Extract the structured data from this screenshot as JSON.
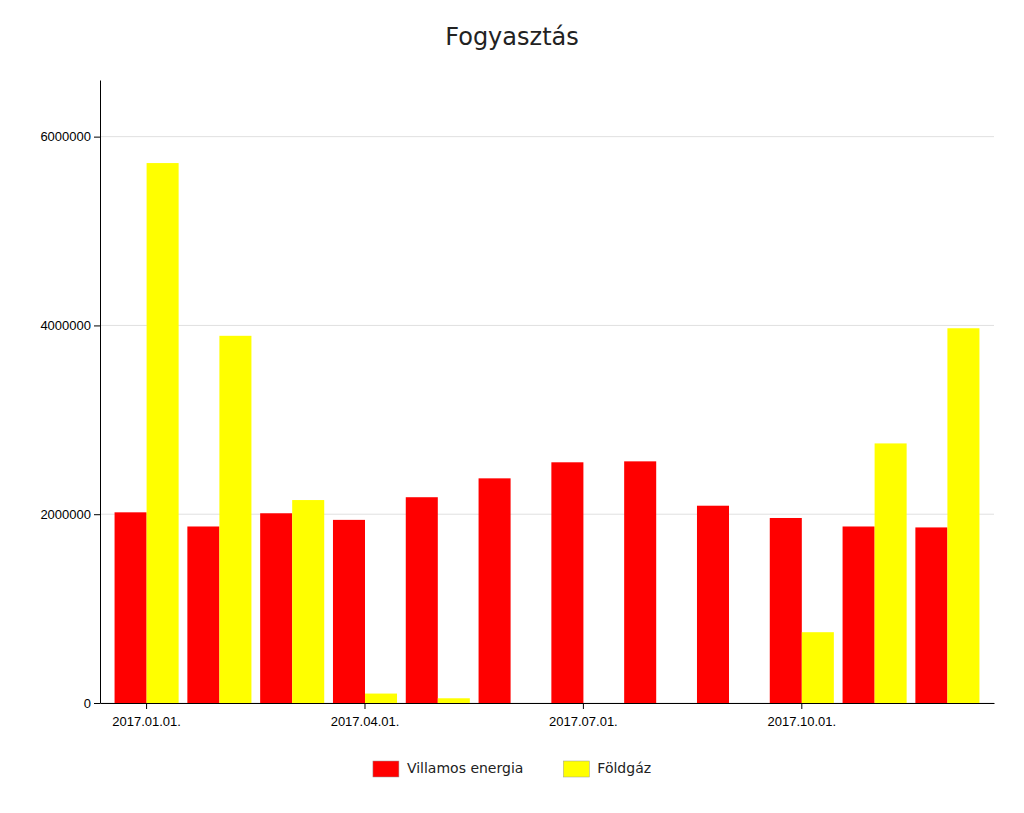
{
  "chart_data": {
    "type": "bar",
    "title": "Fogyasztás",
    "categories": [
      "2017.01.01.",
      null,
      null,
      "2017.04.01.",
      null,
      null,
      "2017.07.01.",
      null,
      null,
      "2017.10.01.",
      null,
      null
    ],
    "series": [
      {
        "name": "Villamos energia",
        "color": "#ff0000",
        "values": [
          2020000,
          1870000,
          2010000,
          1940000,
          2180000,
          2380000,
          2550000,
          2560000,
          2090000,
          1960000,
          1870000,
          1860000
        ]
      },
      {
        "name": "Földgáz",
        "color": "#ffff00",
        "values": [
          5720000,
          3890000,
          2150000,
          100000,
          50000,
          0,
          0,
          0,
          0,
          750000,
          2750000,
          3970000
        ]
      }
    ],
    "ylim": [
      0,
      6600000
    ],
    "yticks": [
      0,
      2000000,
      4000000,
      6000000
    ],
    "grid": true,
    "legend": "bottom"
  }
}
